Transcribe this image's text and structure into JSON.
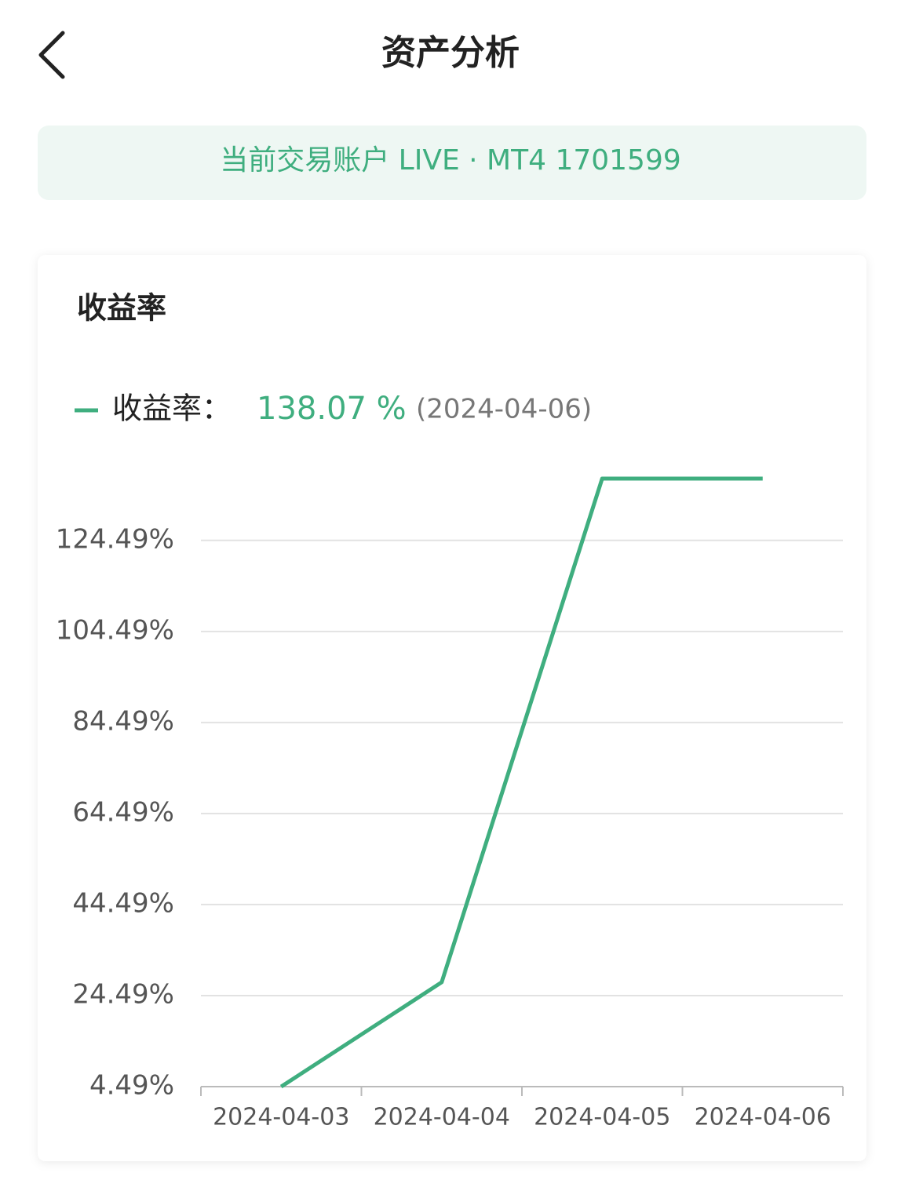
{
  "header": {
    "title": "资产分析"
  },
  "account": "当前交易账户  LIVE · MT4 1701599",
  "chart_data": {
    "type": "line",
    "title": "收益率",
    "categories": [
      "2024-04-03",
      "2024-04-04",
      "2024-04-05",
      "2024-04-06"
    ],
    "series": [
      {
        "name": "收益率：",
        "color": "#3fae7f",
        "values": [
          4.49,
          27.42,
          138.07,
          138.07
        ],
        "value_labels": [
          null,
          null,
          null,
          "138.07 %"
        ]
      }
    ],
    "legend_date": "(2024-04-06)",
    "ylim": [
      4.49,
      138.07
    ],
    "yticks": [
      {
        "value": 4.49,
        "label": "4.49%"
      },
      {
        "value": 24.49,
        "label": "24.49%"
      },
      {
        "value": 44.49,
        "label": "44.49%"
      },
      {
        "value": 64.49,
        "label": "64.49%"
      },
      {
        "value": 84.49,
        "label": "84.49%"
      },
      {
        "value": 104.49,
        "label": "104.49%"
      },
      {
        "value": 124.49,
        "label": "124.49%"
      }
    ],
    "grid": true
  }
}
